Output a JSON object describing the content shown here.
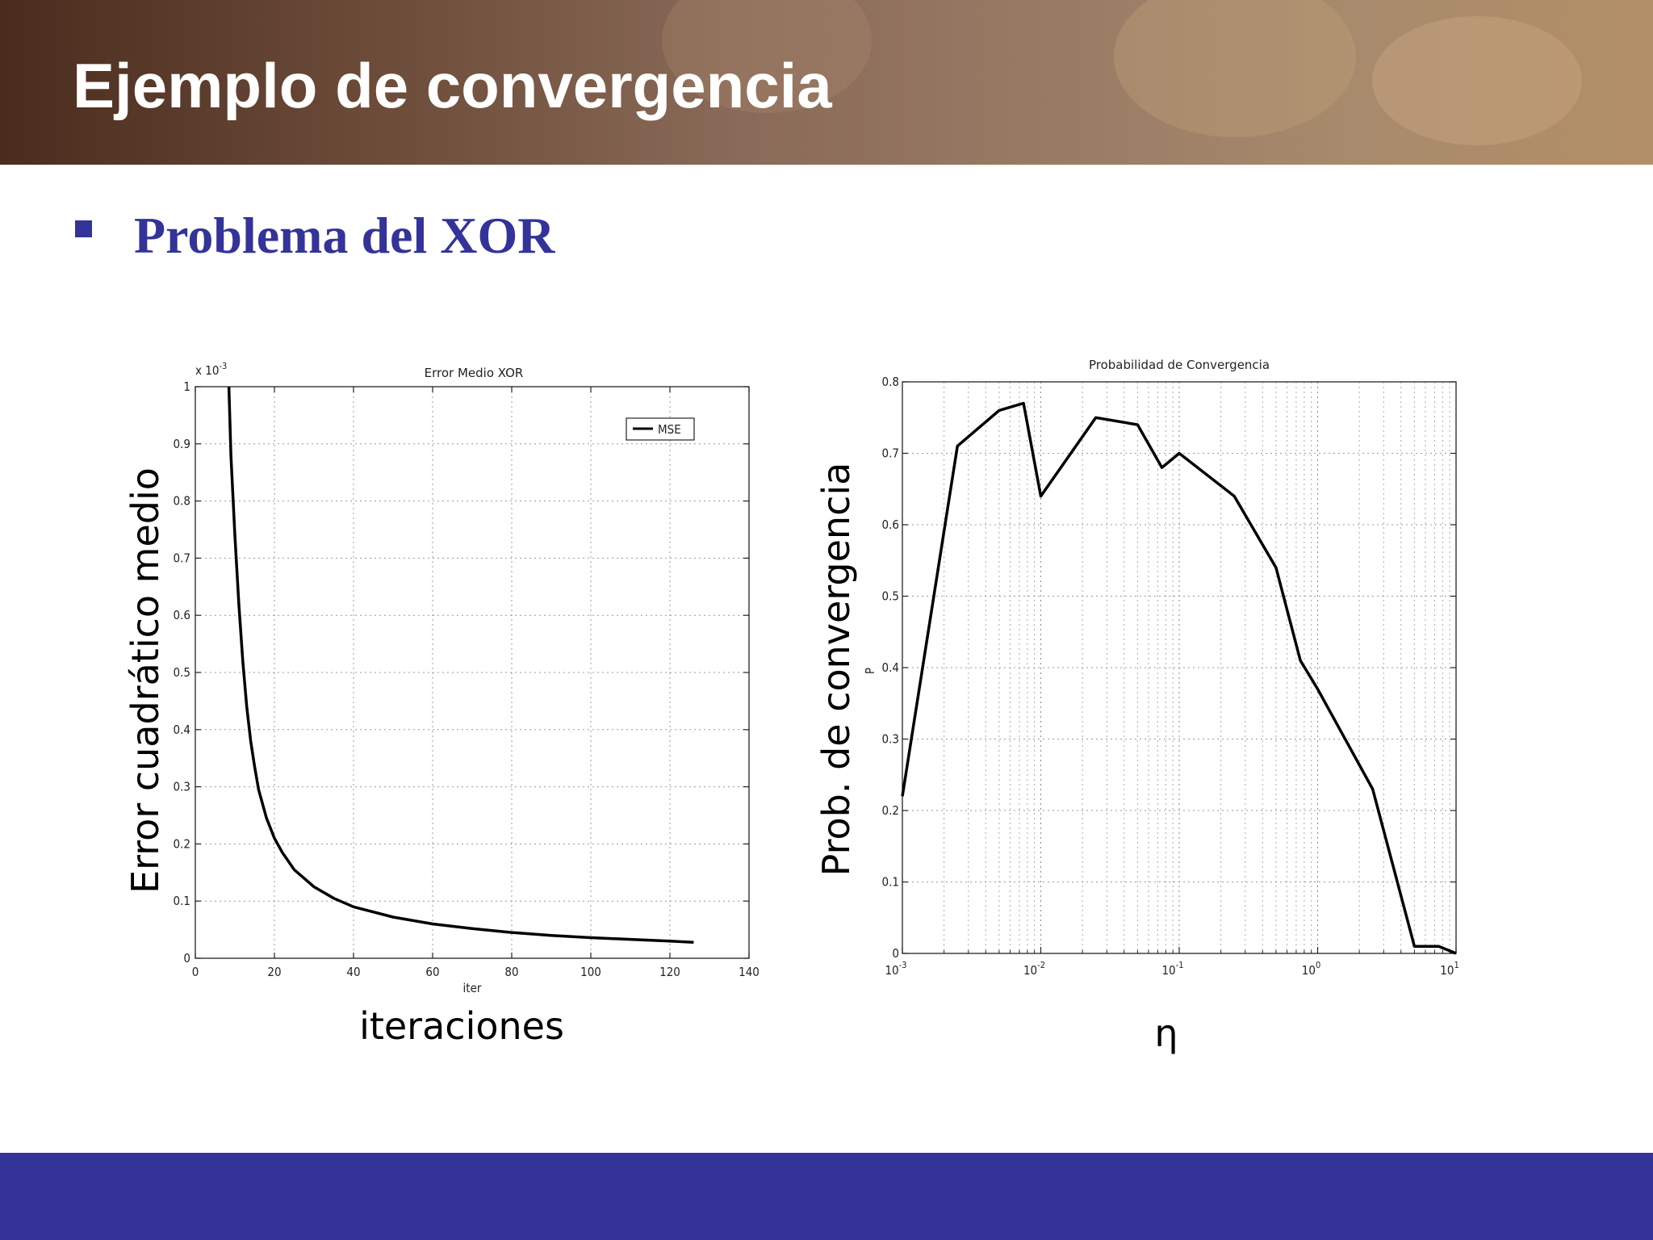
{
  "slide": {
    "title": "Ejemplo de convergencia",
    "bullet": "Problema del XOR",
    "colors": {
      "accent": "#333399",
      "header_dark": "#4a2c1e",
      "header_light": "#b28f66"
    }
  },
  "chart_data": [
    {
      "type": "line",
      "title": "Error Medio XOR",
      "xlabel": "iter",
      "ylabel": "",
      "outer_xlabel": "iteraciones",
      "outer_ylabel": "Error cuadrático medio",
      "y_multiplier": "x 10",
      "y_multiplier_exp": "-3",
      "xlim": [
        0,
        140
      ],
      "ylim": [
        0,
        1
      ],
      "xticks": [
        0,
        20,
        40,
        60,
        80,
        100,
        120,
        140
      ],
      "xtick_labels": [
        "0",
        "20",
        "40",
        "60",
        "80",
        "100",
        "120",
        "140"
      ],
      "yticks": [
        0,
        0.1,
        0.2,
        0.3,
        0.4,
        0.5,
        0.6,
        0.7,
        0.8,
        0.9,
        1
      ],
      "ytick_labels": [
        "0",
        "0.1",
        "0.2",
        "0.3",
        "0.4",
        "0.5",
        "0.6",
        "0.7",
        "0.8",
        "0.9",
        "1"
      ],
      "grid": true,
      "legend": "top-right",
      "series": [
        {
          "name": "MSE",
          "color": "#000000",
          "x": [
            8.5,
            9,
            10,
            11,
            12,
            13,
            14,
            15,
            16,
            18,
            20,
            22,
            25,
            30,
            35,
            40,
            50,
            60,
            70,
            80,
            90,
            100,
            110,
            120,
            126
          ],
          "y": [
            1.0,
            0.88,
            0.74,
            0.62,
            0.52,
            0.44,
            0.38,
            0.335,
            0.295,
            0.245,
            0.21,
            0.185,
            0.155,
            0.125,
            0.105,
            0.09,
            0.072,
            0.06,
            0.052,
            0.045,
            0.04,
            0.036,
            0.033,
            0.03,
            0.028
          ]
        }
      ]
    },
    {
      "type": "line",
      "title": "Probabilidad de Convergencia",
      "xlabel": "",
      "ylabel": "P",
      "outer_xlabel": "η",
      "outer_ylabel": "Prob. de convergencia",
      "xscale": "log",
      "xlim": [
        0.001,
        10
      ],
      "ylim": [
        0,
        0.8
      ],
      "xticks": [
        0.001,
        0.01,
        0.1,
        1,
        10
      ],
      "xtick_labels": [
        {
          "base": "10",
          "exp": "-3"
        },
        {
          "base": "10",
          "exp": "-2"
        },
        {
          "base": "10",
          "exp": "-1"
        },
        {
          "base": "10",
          "exp": "0"
        },
        {
          "base": "10",
          "exp": "1"
        }
      ],
      "yticks": [
        0,
        0.1,
        0.2,
        0.3,
        0.4,
        0.5,
        0.6,
        0.7,
        0.8
      ],
      "ytick_labels": [
        "0",
        "0.1",
        "0.2",
        "0.3",
        "0.4",
        "0.5",
        "0.6",
        "0.7",
        "0.8"
      ],
      "grid": true,
      "series": [
        {
          "color": "#000000",
          "x": [
            0.001,
            0.0025,
            0.005,
            0.0075,
            0.01,
            0.025,
            0.05,
            0.075,
            0.1,
            0.25,
            0.5,
            0.75,
            1,
            2.5,
            5,
            7.5,
            10
          ],
          "y": [
            0.22,
            0.71,
            0.76,
            0.77,
            0.64,
            0.75,
            0.74,
            0.68,
            0.7,
            0.64,
            0.54,
            0.41,
            0.37,
            0.23,
            0.01,
            0.01,
            0.0
          ]
        }
      ]
    }
  ]
}
